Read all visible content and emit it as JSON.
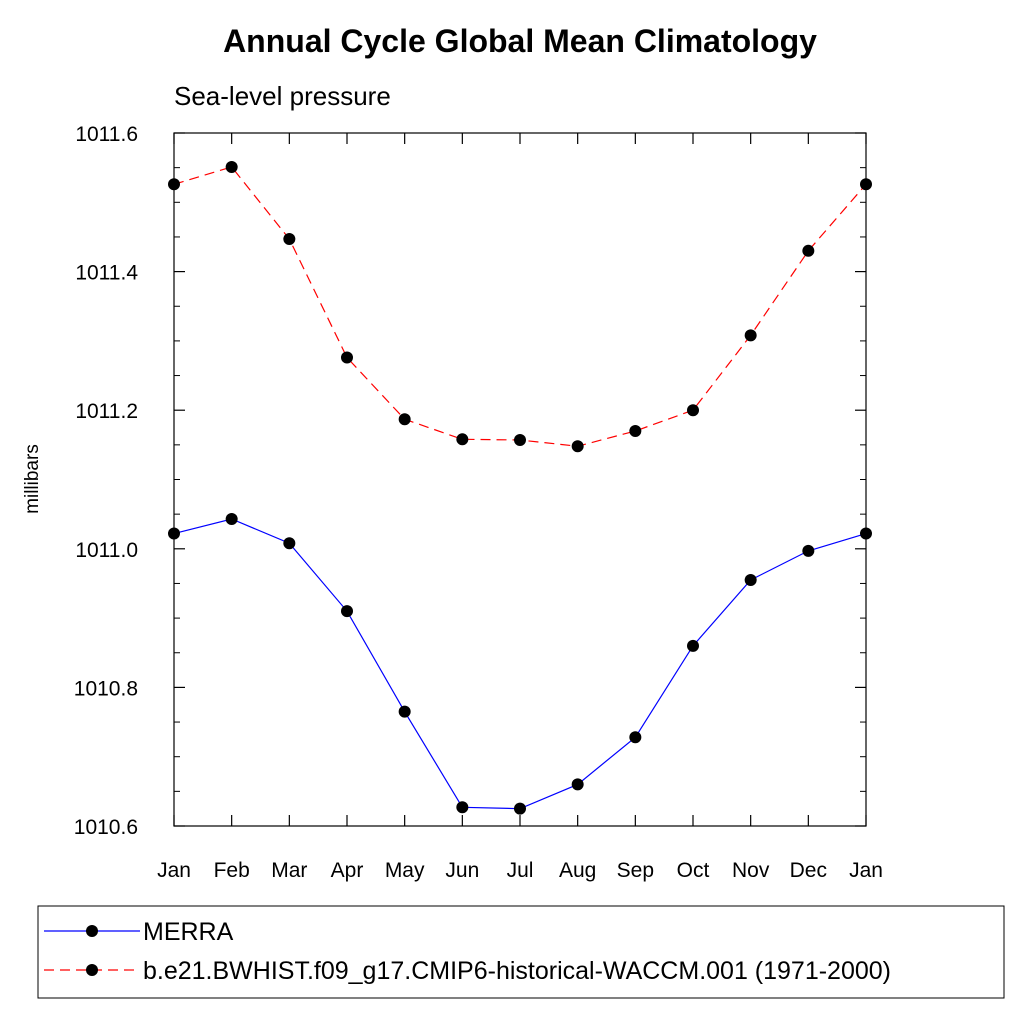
{
  "chart_data": {
    "type": "line",
    "title": "Annual Cycle Global Mean Climatology",
    "subtitle": "Sea-level pressure",
    "ylabel": "millibars",
    "xlabel": "",
    "categories": [
      "Jan",
      "Feb",
      "Mar",
      "Apr",
      "May",
      "Jun",
      "Jul",
      "Aug",
      "Sep",
      "Oct",
      "Nov",
      "Dec",
      "Jan"
    ],
    "ylim": [
      1010.6,
      1011.6
    ],
    "yticks": [
      "1010.6",
      "1010.8",
      "1011.0",
      "1011.2",
      "1011.4",
      "1011.6"
    ],
    "ytick_values": [
      1010.6,
      1010.8,
      1011.0,
      1011.2,
      1011.4,
      1011.6
    ],
    "grid": false,
    "legend_position": "bottom",
    "series": [
      {
        "name": "MERRA",
        "color": "#0000ff",
        "line_style": "solid",
        "marker": "filled-circle",
        "values": [
          1011.022,
          1011.043,
          1011.008,
          1010.91,
          1010.765,
          1010.627,
          1010.625,
          1010.66,
          1010.728,
          1010.86,
          1010.955,
          1010.997,
          1011.022
        ]
      },
      {
        "name": "b.e21.BWHIST.f09_g17.CMIP6-historical-WACCM.001 (1971-2000)",
        "color": "#ff0000",
        "line_style": "dashed",
        "marker": "filled-circle",
        "values": [
          1011.526,
          1011.551,
          1011.447,
          1011.276,
          1011.187,
          1011.158,
          1011.157,
          1011.148,
          1011.17,
          1011.2,
          1011.308,
          1011.43,
          1011.526
        ]
      }
    ]
  }
}
